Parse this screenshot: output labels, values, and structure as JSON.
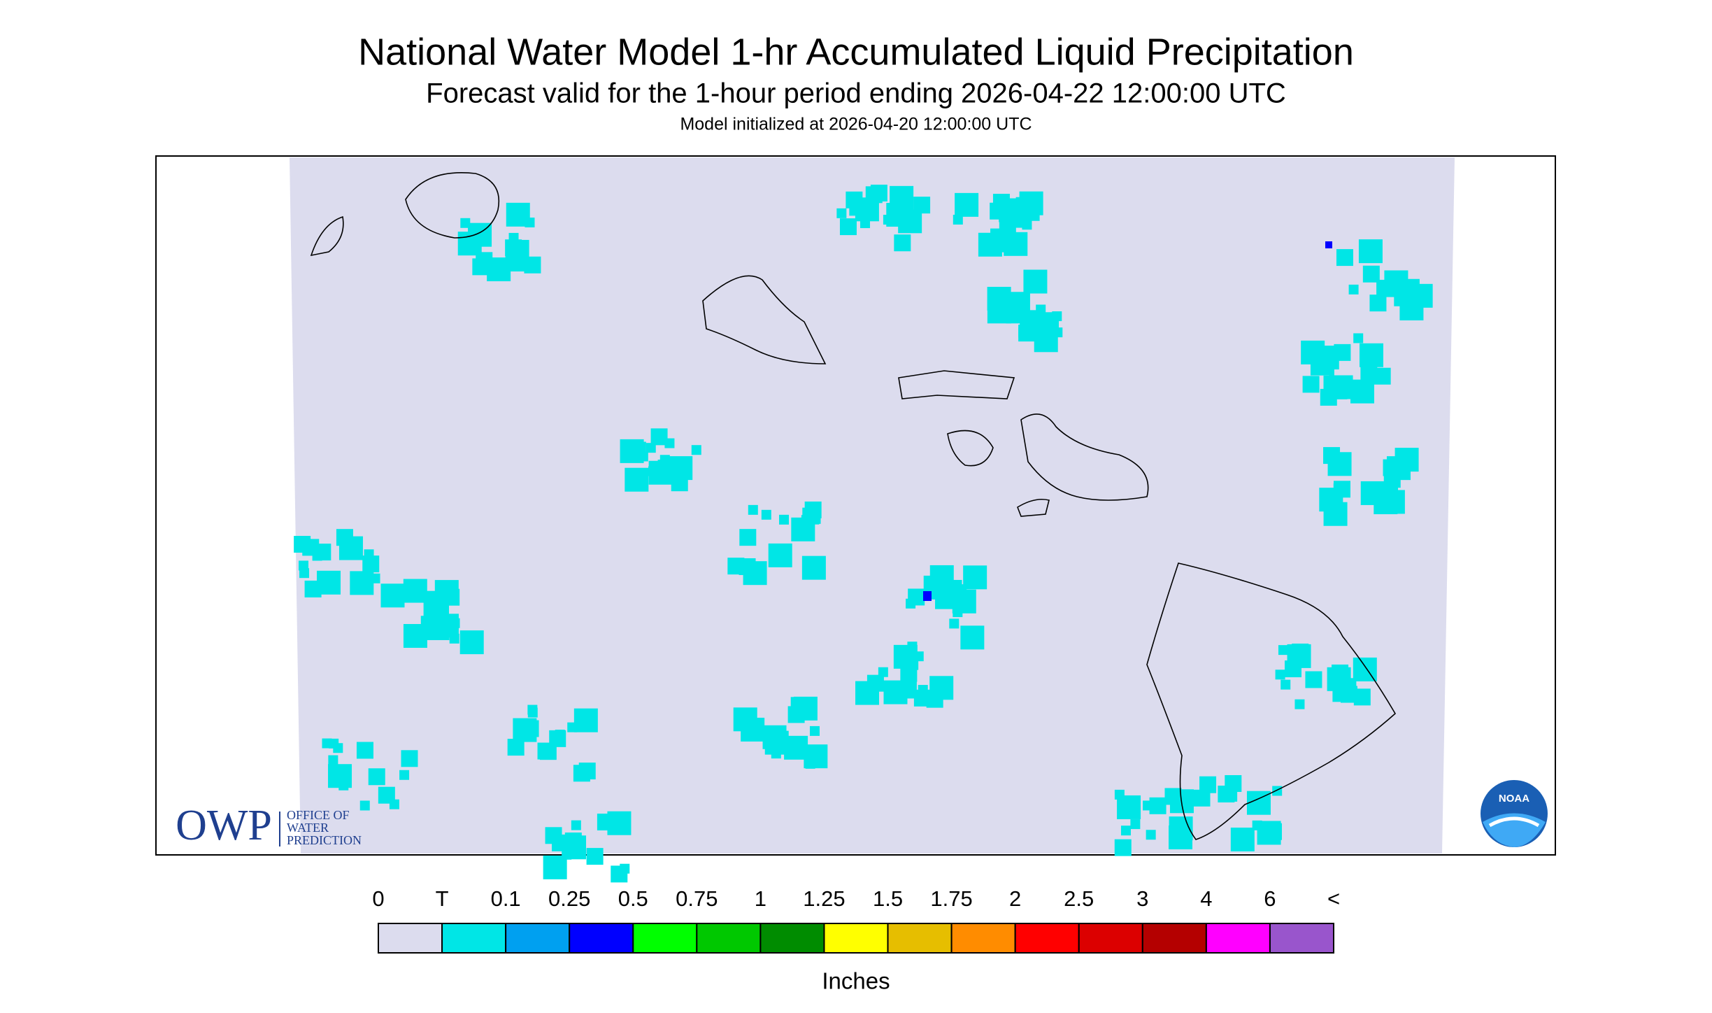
{
  "header": {
    "title": "National Water Model 1-hr Accumulated Liquid Precipitation",
    "subtitle": "Forecast valid for the 1-hour period ending 2026-04-22 12:00:00 UTC",
    "init": "Model initialized at 2026-04-20 12:00:00 UTC"
  },
  "logos": {
    "owp": "OWP",
    "owp_lines": [
      "OFFICE OF",
      "WATER",
      "PREDICTION"
    ],
    "noaa": "NOAA"
  },
  "legend": {
    "labels": [
      "0",
      "T",
      "0.1",
      "0.25",
      "0.5",
      "0.75",
      "1",
      "1.25",
      "1.5",
      "1.75",
      "2",
      "2.5",
      "3",
      "4",
      "6",
      "<"
    ],
    "colors": [
      "#dcdcee",
      "#00e6e6",
      "#00a0f0",
      "#0000ff",
      "#00ff00",
      "#00c800",
      "#008c00",
      "#ffff00",
      "#e6be00",
      "#ff8c00",
      "#ff0000",
      "#dc0000",
      "#b40000",
      "#ff00ff",
      "#9955cc"
    ],
    "unit": "Inches"
  }
}
